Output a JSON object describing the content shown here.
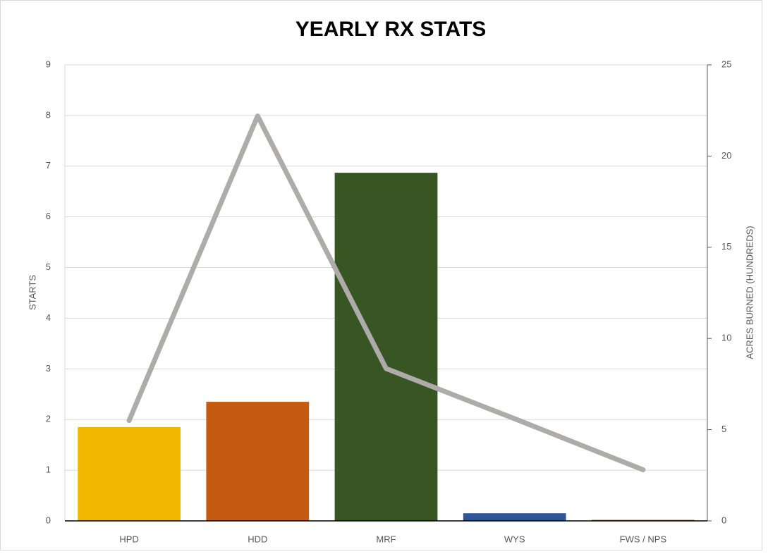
{
  "chart_data": {
    "type": "bar",
    "title": "YEARLY RX STATS",
    "y_label": "STARTS",
    "y2_label": "ACRES BURNED (HUNDREDS)",
    "categories": [
      "HPD",
      "HDD",
      "MRF",
      "WYS",
      "FWS / NPS"
    ],
    "series": [
      {
        "type": "bar",
        "colors": [
          "#f2b800",
          "#c55a11",
          "#375623",
          "#2f5597",
          "#c55a11"
        ],
        "values": [
          1.85,
          2.35,
          6.87,
          0.15,
          0.02
        ]
      },
      {
        "type": "line",
        "axis": "y2",
        "color": "#afabab",
        "values": [
          5.5,
          22.2,
          8.35,
          5.6,
          2.8
        ]
      }
    ],
    "ylim": [
      0,
      9
    ],
    "yticks": [
      0,
      1,
      2,
      3,
      4,
      5,
      6,
      7,
      8,
      9
    ],
    "y2lim": [
      0,
      25
    ],
    "y2ticks": [
      0,
      5,
      10,
      15,
      20,
      25
    ],
    "grid": true
  }
}
